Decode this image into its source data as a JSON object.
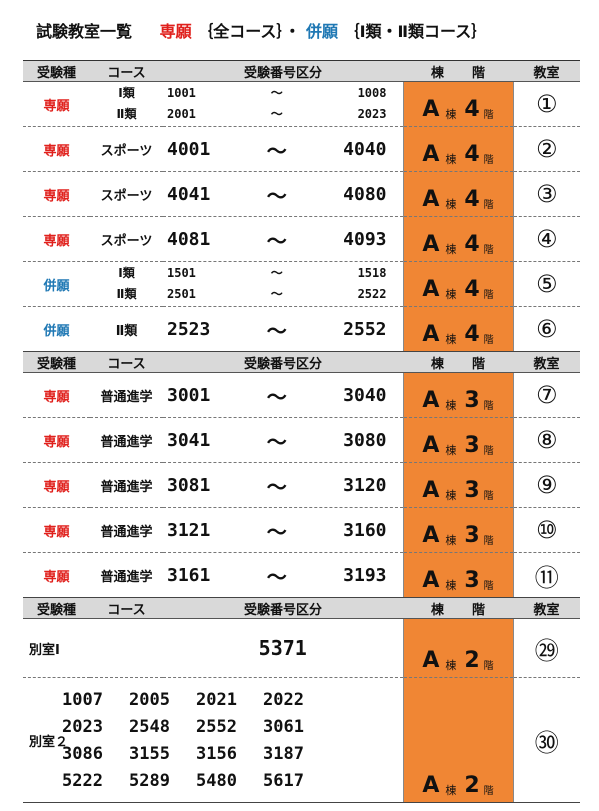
{
  "title": {
    "main": "試験教室一覧",
    "senkan": "専願",
    "senkan_courses": "｛全コース｝・",
    "heigan": "併願",
    "heigan_courses": "｛Ⅰ類・Ⅱ類コース｝"
  },
  "header": {
    "type": "受験種",
    "course": "コース",
    "range": "受験番号区分",
    "building": "棟",
    "floor": "階",
    "room": "教室"
  },
  "unit": {
    "building": "棟",
    "floor": "階"
  },
  "section1": [
    {
      "type": "専願",
      "type_color": "red",
      "double": true,
      "courses": [
        "Ⅰ類",
        "Ⅱ類"
      ],
      "ranges": [
        [
          "1001",
          "〜",
          "1008"
        ],
        [
          "2001",
          "〜",
          "2023"
        ]
      ],
      "building": "A",
      "floor": "4",
      "room": "①"
    },
    {
      "type": "専願",
      "type_color": "red",
      "course": "スポーツ",
      "from": "4001",
      "tilde": "〜",
      "to": "4040",
      "building": "A",
      "floor": "4",
      "room": "②"
    },
    {
      "type": "専願",
      "type_color": "red",
      "course": "スポーツ",
      "from": "4041",
      "tilde": "〜",
      "to": "4080",
      "building": "A",
      "floor": "4",
      "room": "③"
    },
    {
      "type": "専願",
      "type_color": "red",
      "course": "スポーツ",
      "from": "4081",
      "tilde": "〜",
      "to": "4093",
      "building": "A",
      "floor": "4",
      "room": "④"
    },
    {
      "type": "併願",
      "type_color": "blue",
      "double": true,
      "courses": [
        "Ⅰ類",
        "Ⅱ類"
      ],
      "ranges": [
        [
          "1501",
          "〜",
          "1518"
        ],
        [
          "2501",
          "〜",
          "2522"
        ]
      ],
      "building": "A",
      "floor": "4",
      "room": "⑤"
    },
    {
      "type": "併願",
      "type_color": "blue",
      "course": "Ⅱ類",
      "from": "2523",
      "tilde": "〜",
      "to": "2552",
      "building": "A",
      "floor": "4",
      "room": "⑥"
    }
  ],
  "section2": [
    {
      "type": "専願",
      "course": "普通進学",
      "from": "3001",
      "tilde": "〜",
      "to": "3040",
      "building": "A",
      "floor": "3",
      "room": "⑦"
    },
    {
      "type": "専願",
      "course": "普通進学",
      "from": "3041",
      "tilde": "〜",
      "to": "3080",
      "building": "A",
      "floor": "3",
      "room": "⑧"
    },
    {
      "type": "専願",
      "course": "普通進学",
      "from": "3081",
      "tilde": "〜",
      "to": "3120",
      "building": "A",
      "floor": "3",
      "room": "⑨"
    },
    {
      "type": "専願",
      "course": "普通進学",
      "from": "3121",
      "tilde": "〜",
      "to": "3160",
      "building": "A",
      "floor": "3",
      "room": "⑩"
    },
    {
      "type": "専願",
      "course": "普通進学",
      "from": "3161",
      "tilde": "〜",
      "to": "3193",
      "building": "A",
      "floor": "3",
      "room": "⑪"
    }
  ],
  "section3": {
    "room1": {
      "label": "別室Ⅰ",
      "number": "5371",
      "building": "A",
      "floor": "2",
      "room": "㉙"
    },
    "room2": {
      "label": "別室２",
      "numbers": [
        "1007",
        "2005",
        "2021",
        "2022",
        "2023",
        "2548",
        "2552",
        "3061",
        "3086",
        "3155",
        "3156",
        "3187",
        "5222",
        "5289",
        "5480",
        "5617"
      ],
      "building": "A",
      "floor": "2",
      "room": "㉚"
    }
  },
  "colors": {
    "red": "#e0201c",
    "blue": "#1f78b4",
    "floor_bg": "#f08634",
    "header_bg": "#d9d9d9"
  }
}
